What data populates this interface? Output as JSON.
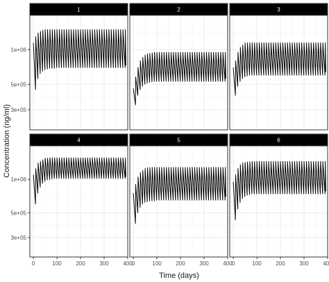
{
  "chart_data": {
    "type": "line",
    "xlabel": "Time (days)",
    "ylabel": "Concentration (ng/ml)",
    "xlim": [
      -15,
      400
    ],
    "xticks": [
      0,
      100,
      200,
      300,
      400
    ],
    "xtick_labels": [
      "0",
      "100",
      "200",
      "300",
      "400"
    ],
    "yscale": "log",
    "ylim": [
      200000,
      2000000
    ],
    "yticks": [
      300000,
      500000,
      1000000
    ],
    "ytick_labels": [
      "3e+05",
      "5e+05",
      "1e+06"
    ],
    "grid": true,
    "line_color": "#000000",
    "strip_color": "#000000",
    "dose_interval_days": 10,
    "first_dose_day": 0,
    "last_point_day": 390,
    "panels": [
      {
        "label": "1",
        "series": {
          "x": [
            0,
            10,
            20,
            30,
            40,
            50,
            60,
            70,
            80,
            90,
            100,
            150,
            200,
            250,
            300,
            350,
            380,
            390
          ],
          "peak": [
            1200000,
            1300000,
            1400000,
            1450000,
            1480000,
            1500000,
            1500000,
            1500000,
            1500000,
            1500000,
            1500000,
            1500000,
            1500000,
            1500000,
            1500000,
            1500000,
            1500000,
            1500000
          ],
          "trough": [
            290000,
            450000,
            560000,
            620000,
            650000,
            670000,
            680000,
            690000,
            690000,
            690000,
            700000,
            700000,
            700000,
            700000,
            700000,
            700000,
            700000,
            700000
          ],
          "first_value": 1150000,
          "last_value": 730000
        }
      },
      {
        "label": "2",
        "series": {
          "x": [
            0,
            10,
            20,
            30,
            40,
            50,
            60,
            70,
            80,
            90,
            100,
            150,
            200,
            250,
            300,
            350,
            380,
            390
          ],
          "peak": [
            470000,
            580000,
            700000,
            800000,
            860000,
            900000,
            920000,
            930000,
            940000,
            950000,
            950000,
            950000,
            950000,
            950000,
            950000,
            950000,
            950000,
            950000
          ],
          "trough": [
            220000,
            330000,
            400000,
            450000,
            480000,
            500000,
            510000,
            520000,
            525000,
            530000,
            530000,
            530000,
            530000,
            530000,
            530000,
            530000,
            530000,
            530000
          ],
          "first_value": 460000,
          "last_value": 560000
        }
      },
      {
        "label": "3",
        "series": {
          "x": [
            0,
            10,
            20,
            30,
            40,
            50,
            60,
            70,
            80,
            90,
            100,
            150,
            200,
            250,
            300,
            350,
            380,
            390
          ],
          "peak": [
            700000,
            800000,
            950000,
            1050000,
            1100000,
            1150000,
            1150000,
            1150000,
            1150000,
            1150000,
            1150000,
            1150000,
            1150000,
            1150000,
            1150000,
            1150000,
            1150000,
            1150000
          ],
          "trough": [
            270000,
            400000,
            480000,
            530000,
            560000,
            580000,
            590000,
            600000,
            600000,
            600000,
            600000,
            600000,
            600000,
            600000,
            600000,
            600000,
            600000,
            600000
          ],
          "first_value": 700000,
          "last_value": 640000
        }
      },
      {
        "label": "4",
        "series": {
          "x": [
            0,
            10,
            20,
            30,
            40,
            50,
            60,
            70,
            80,
            90,
            100,
            150,
            200,
            250,
            300,
            350,
            380,
            390
          ],
          "peak": [
            1150000,
            1250000,
            1400000,
            1450000,
            1500000,
            1550000,
            1550000,
            1560000,
            1560000,
            1560000,
            1560000,
            1560000,
            1560000,
            1560000,
            1560000,
            1560000,
            1560000,
            1560000
          ],
          "trough": [
            400000,
            600000,
            750000,
            850000,
            920000,
            960000,
            990000,
            1000000,
            1010000,
            1020000,
            1020000,
            1020000,
            1020000,
            1020000,
            1020000,
            1020000,
            1020000,
            1020000
          ],
          "first_value": 1100000,
          "last_value": 1050000
        }
      },
      {
        "label": "5",
        "series": {
          "x": [
            0,
            10,
            20,
            30,
            40,
            50,
            60,
            70,
            80,
            90,
            100,
            150,
            200,
            250,
            300,
            350,
            380,
            390
          ],
          "peak": [
            750000,
            900000,
            1050000,
            1150000,
            1200000,
            1250000,
            1270000,
            1280000,
            1280000,
            1280000,
            1280000,
            1280000,
            1280000,
            1280000,
            1280000,
            1280000,
            1280000,
            1280000
          ],
          "trough": [
            270000,
            400000,
            500000,
            560000,
            600000,
            620000,
            630000,
            640000,
            640000,
            640000,
            650000,
            650000,
            650000,
            650000,
            650000,
            650000,
            650000,
            650000
          ],
          "first_value": 750000,
          "last_value": 700000
        }
      },
      {
        "label": "6",
        "series": {
          "x": [
            0,
            10,
            20,
            30,
            40,
            50,
            60,
            70,
            80,
            90,
            100,
            150,
            200,
            250,
            300,
            350,
            380,
            390
          ],
          "peak": [
            950000,
            1100000,
            1250000,
            1350000,
            1400000,
            1420000,
            1430000,
            1440000,
            1450000,
            1450000,
            1450000,
            1450000,
            1450000,
            1450000,
            1450000,
            1450000,
            1450000,
            1450000
          ],
          "trough": [
            290000,
            430000,
            540000,
            620000,
            670000,
            700000,
            720000,
            730000,
            740000,
            740000,
            740000,
            740000,
            740000,
            740000,
            740000,
            740000,
            740000,
            740000
          ],
          "first_value": 950000,
          "last_value": 780000
        }
      }
    ]
  }
}
